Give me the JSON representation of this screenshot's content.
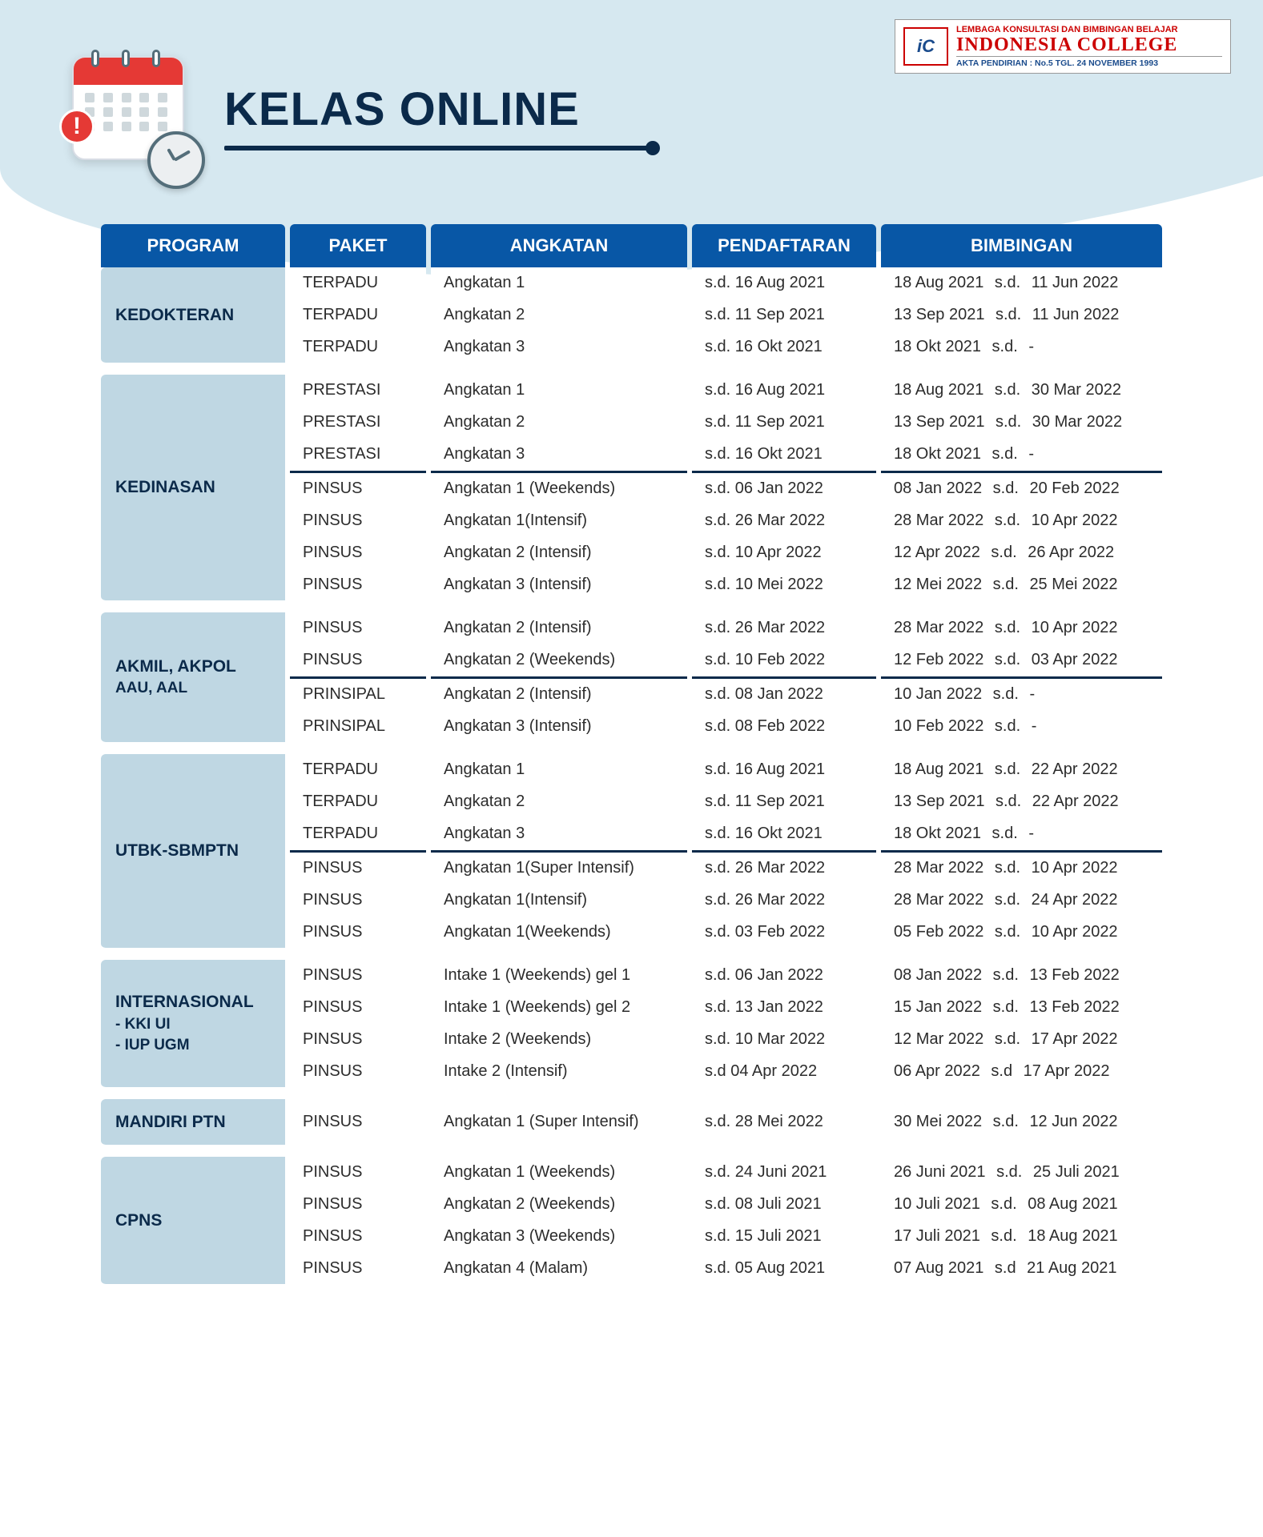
{
  "colors": {
    "header_bg": "#0857a6",
    "header_text": "#ffffff",
    "program_cell_bg": "#bfd7e3",
    "program_text": "#0b2a4a",
    "row_bg": "#ffffff",
    "separator": "#0b2a4a",
    "page_swoosh": "#d6e8f0",
    "title_color": "#0b2a4a",
    "logo_red": "#c00000",
    "logo_blue": "#1a4b8c"
  },
  "logo": {
    "superscript": "LEMBAGA KONSULTASI DAN BIMBINGAN BELAJAR",
    "main": "INDONESIA COLLEGE",
    "sub": "AKTA PENDIRIAN : No.5  TGL. 24 NOVEMBER 1993",
    "badge": "iC"
  },
  "title": "KELAS ONLINE",
  "columns": {
    "program": "PROGRAM",
    "paket": "PAKET",
    "angkatan": "ANGKATAN",
    "pendaftaran": "PENDAFTARAN",
    "bimbingan": "BIMBINGAN"
  },
  "sd_label": "s.d.",
  "programs": [
    {
      "name": "KEDOKTERAN",
      "groups": [
        [
          {
            "paket": "TERPADU",
            "angkatan": "Angkatan 1",
            "daftar": "s.d.  16 Aug 2021",
            "bimb_start": "18 Aug 2021",
            "bimb_end": "11 Jun 2022"
          },
          {
            "paket": "TERPADU",
            "angkatan": "Angkatan 2",
            "daftar": "s.d.  11 Sep 2021",
            "bimb_start": "13 Sep 2021",
            "bimb_end": "11 Jun 2022"
          },
          {
            "paket": "TERPADU",
            "angkatan": "Angkatan 3",
            "daftar": "s.d.  16 Okt 2021",
            "bimb_start": "18 Okt 2021",
            "bimb_end": "-"
          }
        ]
      ]
    },
    {
      "name": "KEDINASAN",
      "groups": [
        [
          {
            "paket": "PRESTASI",
            "angkatan": "Angkatan 1",
            "daftar": "s.d.  16 Aug 2021",
            "bimb_start": "18 Aug 2021",
            "bimb_end": "30 Mar 2022"
          },
          {
            "paket": "PRESTASI",
            "angkatan": "Angkatan 2",
            "daftar": "s.d.  11 Sep 2021",
            "bimb_start": "13 Sep 2021",
            "bimb_end": "30 Mar 2022"
          },
          {
            "paket": "PRESTASI",
            "angkatan": "Angkatan 3",
            "daftar": "s.d.  16 Okt 2021",
            "bimb_start": "18 Okt 2021",
            "bimb_end": "-"
          }
        ],
        [
          {
            "paket": "PINSUS",
            "angkatan": "Angkatan 1 (Weekends)",
            "daftar": "s.d.  06 Jan 2022",
            "bimb_start": "08 Jan 2022",
            "bimb_end": "20 Feb 2022"
          },
          {
            "paket": "PINSUS",
            "angkatan": "Angkatan 1(Intensif)",
            "daftar": "s.d.  26 Mar 2022",
            "bimb_start": "28 Mar 2022",
            "bimb_end": "10 Apr 2022"
          },
          {
            "paket": "PINSUS",
            "angkatan": "Angkatan 2 (Intensif)",
            "daftar": "s.d.  10 Apr 2022",
            "bimb_start": "12 Apr 2022",
            "bimb_end": "26 Apr 2022"
          },
          {
            "paket": "PINSUS",
            "angkatan": "Angkatan 3 (Intensif)",
            "daftar": "s.d.  10 Mei 2022",
            "bimb_start": "12 Mei 2022",
            "bimb_end": "25 Mei 2022"
          }
        ]
      ]
    },
    {
      "name": "AKMIL, AKPOL",
      "sub": "AAU, AAL",
      "groups": [
        [
          {
            "paket": "PINSUS",
            "angkatan": "Angkatan 2 (Intensif)",
            "daftar": "s.d.  26 Mar 2022",
            "bimb_start": "28 Mar 2022",
            "bimb_end": "10 Apr 2022"
          },
          {
            "paket": "PINSUS",
            "angkatan": "Angkatan 2 (Weekends)",
            "daftar": "s.d.  10 Feb 2022",
            "bimb_start": "12 Feb 2022",
            "bimb_end": "03 Apr 2022"
          }
        ],
        [
          {
            "paket": "PRINSIPAL",
            "angkatan": "Angkatan 2 (Intensif)",
            "daftar": "s.d.  08 Jan  2022",
            "bimb_start": "10 Jan 2022",
            "bimb_end": "-"
          },
          {
            "paket": "PRINSIPAL",
            "angkatan": "Angkatan 3 (Intensif)",
            "daftar": "s.d.  08 Feb 2022",
            "bimb_start": "10 Feb 2022",
            "bimb_end": "-"
          }
        ]
      ]
    },
    {
      "name": "UTBK-SBMPTN",
      "groups": [
        [
          {
            "paket": "TERPADU",
            "angkatan": "Angkatan 1",
            "daftar": "s.d.  16 Aug 2021",
            "bimb_start": "18 Aug 2021",
            "bimb_end": "22 Apr 2022"
          },
          {
            "paket": "TERPADU",
            "angkatan": "Angkatan 2",
            "daftar": "s.d.  11 Sep 2021",
            "bimb_start": "13 Sep 2021",
            "bimb_end": "22 Apr 2022"
          },
          {
            "paket": "TERPADU",
            "angkatan": "Angkatan 3",
            "daftar": "s.d.  16 Okt 2021",
            "bimb_start": "18 Okt 2021",
            "bimb_end": "-"
          }
        ],
        [
          {
            "paket": "PINSUS",
            "angkatan": "Angkatan 1(Super Intensif)",
            "daftar": "s.d.  26 Mar 2022",
            "bimb_start": "28 Mar 2022",
            "bimb_end": "10 Apr 2022"
          },
          {
            "paket": "PINSUS",
            "angkatan": "Angkatan 1(Intensif)",
            "daftar": "s.d.  26 Mar 2022",
            "bimb_start": "28 Mar 2022",
            "bimb_end": "24 Apr 2022"
          },
          {
            "paket": "PINSUS",
            "angkatan": "Angkatan 1(Weekends)",
            "daftar": "s.d.  03 Feb 2022",
            "bimb_start": "05 Feb 2022",
            "bimb_end": "10 Apr 2022"
          }
        ]
      ]
    },
    {
      "name": "INTERNASIONAL",
      "sub": "- KKI UI\n- IUP UGM",
      "groups": [
        [
          {
            "paket": "PINSUS",
            "angkatan": "Intake 1 (Weekends) gel 1",
            "daftar": "s.d.  06 Jan 2022",
            "bimb_start": "08 Jan 2022",
            "bimb_end": "13 Feb 2022"
          },
          {
            "paket": "PINSUS",
            "angkatan": "Intake 1 (Weekends) gel 2",
            "daftar": "s.d.  13 Jan 2022",
            "bimb_start": "15 Jan 2022",
            "bimb_end": "13 Feb 2022"
          },
          {
            "paket": "PINSUS",
            "angkatan": "Intake 2 (Weekends)",
            "daftar": "s.d.  10 Mar 2022",
            "bimb_start": "12 Mar 2022",
            "bimb_end": "17 Apr 2022"
          },
          {
            "paket": "PINSUS",
            "angkatan": "Intake 2 (Intensif)",
            "daftar": "s.d   04 Apr 2022",
            "bimb_start": "06 Apr 2022",
            "bimb_end_label": "s.d",
            "bimb_end": "17 Apr 2022"
          }
        ]
      ]
    },
    {
      "name": "MANDIRI PTN",
      "groups": [
        [
          {
            "paket": "PINSUS",
            "angkatan": "Angkatan 1 (Super Intensif)",
            "daftar": "s.d.  28 Mei 2022",
            "bimb_start": "30 Mei 2022",
            "bimb_end": "12 Jun 2022"
          }
        ]
      ]
    },
    {
      "name": "CPNS",
      "groups": [
        [
          {
            "paket": "PINSUS",
            "angkatan": "Angkatan 1 (Weekends)",
            "daftar": "s.d.  24 Juni 2021",
            "bimb_start": "26 Juni 2021",
            "bimb_end": "25 Juli 2021"
          },
          {
            "paket": "PINSUS",
            "angkatan": "Angkatan 2 (Weekends)",
            "daftar": "s.d.  08 Juli  2021",
            "bimb_start": "10 Juli 2021",
            "bimb_end": "08 Aug 2021"
          },
          {
            "paket": "PINSUS",
            "angkatan": "Angkatan 3 (Weekends)",
            "daftar": "s.d.  15 Juli  2021",
            "bimb_start": "17 Juli 2021",
            "bimb_end": "18 Aug 2021"
          },
          {
            "paket": "PINSUS",
            "angkatan": "Angkatan 4 (Malam)",
            "daftar": "s.d.  05 Aug 2021",
            "bimb_start": "07 Aug 2021",
            "bimb_end_label": "s.d",
            "bimb_end": "21 Aug 2021"
          }
        ]
      ]
    }
  ]
}
